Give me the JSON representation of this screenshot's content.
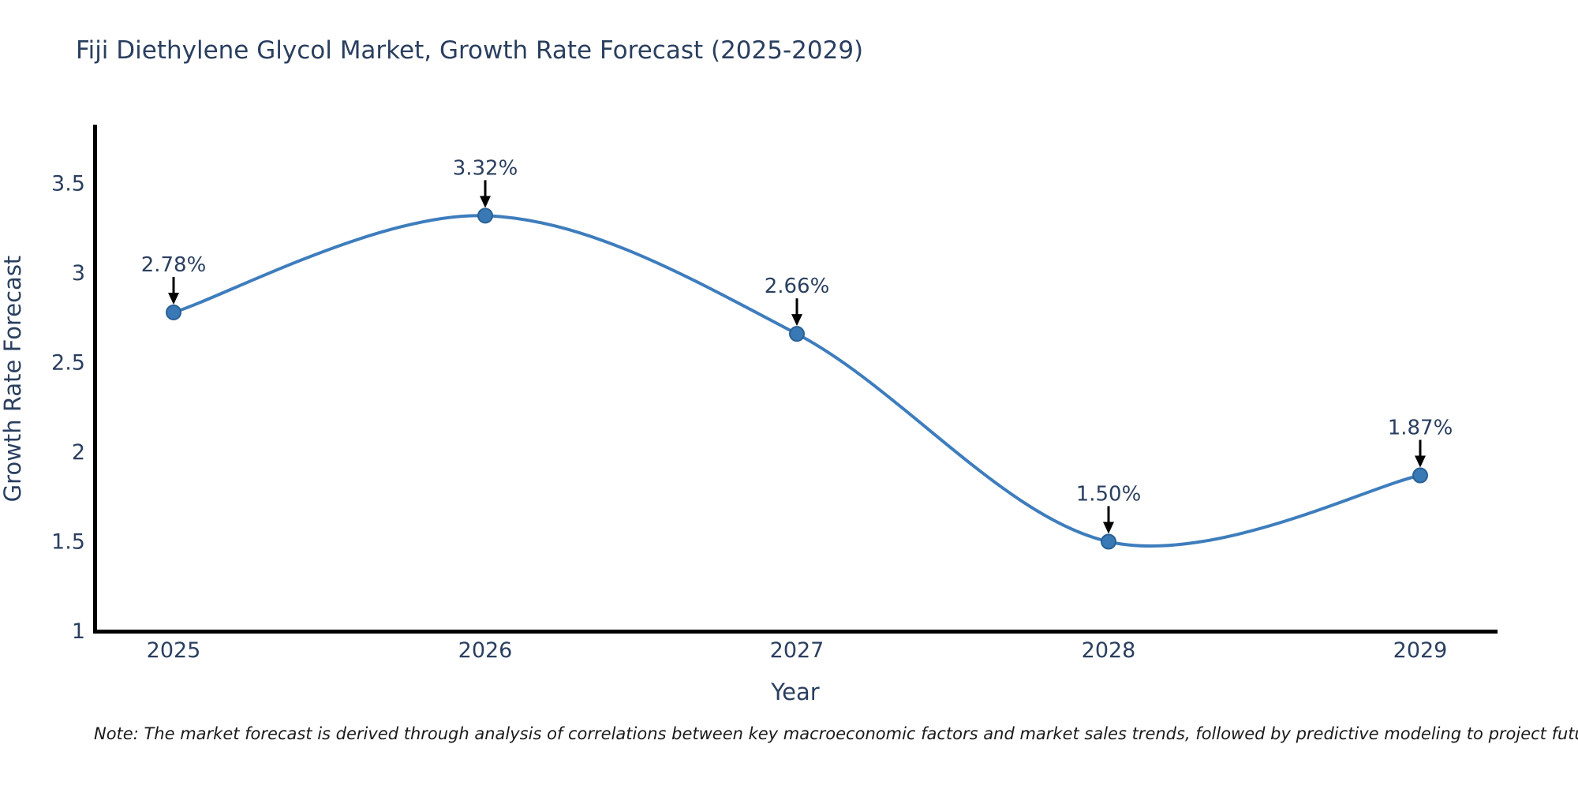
{
  "title": "Fiji Diethylene Glycol Market, Growth Rate Forecast (2025-2029)",
  "note": "Note: The market forecast is derived through analysis of correlations between key macroeconomic factors and market sales trends, followed by predictive modeling to project future sales",
  "chart_data": {
    "type": "line",
    "title": "Fiji Diethylene Glycol Market, Growth Rate Forecast (2025-2029)",
    "categories": [
      "2025",
      "2026",
      "2027",
      "2028",
      "2029"
    ],
    "values": [
      2.78,
      3.32,
      2.66,
      1.5,
      1.87
    ],
    "point_labels": [
      "2.78%",
      "3.32%",
      "2.66%",
      "1.50%",
      "1.87%"
    ],
    "xlabel": "Year",
    "ylabel": "Growth Rate Forecast",
    "ylim": [
      1,
      3.82
    ],
    "yticks": [
      1,
      1.5,
      2,
      2.5,
      3,
      3.5
    ],
    "ytick_labels": [
      "1",
      "1.5",
      "2",
      "2.5",
      "3",
      "3.5"
    ],
    "grid": false,
    "legend": "none",
    "line_shape": "spline",
    "colors": {
      "line": "#3E7DBD",
      "marker": "#3879B6",
      "marker_edge": "#2B6195",
      "axis": "#000000",
      "text": "#2A3F5F",
      "annotation": "#2A3F5F",
      "arrow": "#000000"
    }
  }
}
